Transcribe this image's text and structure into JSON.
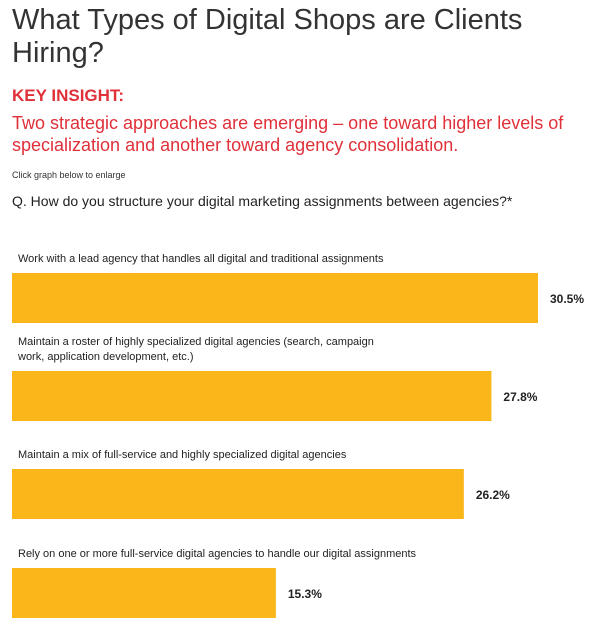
{
  "header": {
    "title": "What Types of Digital Shops are Clients Hiring?",
    "key_insight_label": "KEY INSIGHT:",
    "key_insight_text": "Two strategic approaches are emerging – one toward higher levels of specialization and another toward agency consolidation.",
    "enlarge_note": "Click graph below to enlarge",
    "question": "Q. How do you structure your digital marketing assignments between agencies?*"
  },
  "colors": {
    "bar": "#fbb71a",
    "accent": "#e0303a"
  },
  "chart_data": {
    "type": "bar",
    "orientation": "horizontal",
    "categories": [
      [
        "Work with a lead agency that handles all digital and traditional assignments"
      ],
      [
        "Maintain a roster of highly specialized digital agencies (search, campaign",
        "work, application development, etc.)"
      ],
      [
        "Maintain a mix of full-service and highly specialized digital agencies"
      ],
      [
        "Rely on one or more full-service digital agencies to handle our digital assignments"
      ]
    ],
    "values": [
      30.5,
      27.8,
      26.2,
      15.3
    ],
    "value_labels": [
      "30.5%",
      "27.8%",
      "26.2%",
      "15.3%"
    ],
    "xlim": [
      0,
      30.5
    ],
    "grid": false
  }
}
